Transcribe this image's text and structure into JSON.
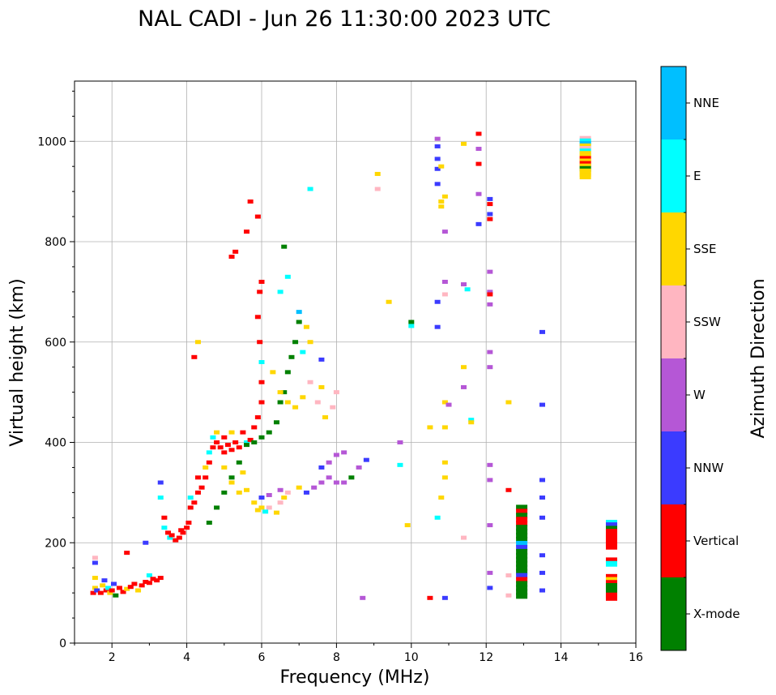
{
  "chart_data": {
    "type": "scatter",
    "title": "NAL CADI - Jun 26 11:30:00 2023 UTC",
    "xlabel": "Frequency (MHz)",
    "ylabel": "Virtual height (km)",
    "xlim": [
      1,
      16
    ],
    "ylim": [
      0,
      1120
    ],
    "x_ticks": [
      2,
      4,
      6,
      8,
      10,
      12,
      14,
      16
    ],
    "y_ticks": [
      0,
      200,
      400,
      600,
      800,
      1000
    ],
    "grid": true,
    "colorbar": {
      "label": "Azimuth Direction",
      "categories": [
        {
          "name": "X-mode",
          "color": "#008000"
        },
        {
          "name": "Vertical",
          "color": "#ff0000"
        },
        {
          "name": "NNW",
          "color": "#3b3bff"
        },
        {
          "name": "W",
          "color": "#b557d6"
        },
        {
          "name": "SSW",
          "color": "#ffb6c1"
        },
        {
          "name": "SSE",
          "color": "#ffd700"
        },
        {
          "name": "E",
          "color": "#00ffff"
        },
        {
          "name": "NNE",
          "color": "#00bfff"
        }
      ]
    },
    "points": [
      [
        1.5,
        100,
        "Vertical"
      ],
      [
        1.55,
        110,
        "SSE"
      ],
      [
        1.55,
        130,
        "SSE"
      ],
      [
        1.6,
        105,
        "NNW"
      ],
      [
        1.7,
        100,
        "Vertical"
      ],
      [
        1.75,
        115,
        "SSE"
      ],
      [
        1.8,
        125,
        "NNW"
      ],
      [
        1.85,
        105,
        "Vertical"
      ],
      [
        1.9,
        110,
        "E"
      ],
      [
        1.95,
        100,
        "SSE"
      ],
      [
        2.0,
        105,
        "Vertical"
      ],
      [
        2.05,
        118,
        "NNW"
      ],
      [
        2.1,
        95,
        "X-mode"
      ],
      [
        2.2,
        110,
        "Vertical"
      ],
      [
        2.3,
        102,
        "Vertical"
      ],
      [
        2.4,
        108,
        "SSE"
      ],
      [
        2.5,
        112,
        "Vertical"
      ],
      [
        2.6,
        118,
        "Vertical"
      ],
      [
        2.7,
        105,
        "SSE"
      ],
      [
        2.8,
        115,
        "Vertical"
      ],
      [
        2.9,
        122,
        "Vertical"
      ],
      [
        3.0,
        120,
        "Vertical"
      ],
      [
        3.0,
        135,
        "E"
      ],
      [
        3.1,
        128,
        "Vertical"
      ],
      [
        3.2,
        125,
        "Vertical"
      ],
      [
        3.3,
        130,
        "Vertical"
      ],
      [
        1.55,
        170,
        "SSW"
      ],
      [
        1.55,
        160,
        "NNW"
      ],
      [
        2.4,
        180,
        "Vertical"
      ],
      [
        2.9,
        200,
        "NNW"
      ],
      [
        3.3,
        290,
        "E"
      ],
      [
        3.3,
        320,
        "NNW"
      ],
      [
        3.4,
        250,
        "Vertical"
      ],
      [
        3.4,
        230,
        "E"
      ],
      [
        3.5,
        220,
        "Vertical"
      ],
      [
        3.55,
        210,
        "E"
      ],
      [
        3.6,
        215,
        "Vertical"
      ],
      [
        3.7,
        205,
        "Vertical"
      ],
      [
        3.8,
        210,
        "Vertical"
      ],
      [
        3.85,
        225,
        "Vertical"
      ],
      [
        3.9,
        220,
        "Vertical"
      ],
      [
        4.0,
        230,
        "Vertical"
      ],
      [
        4.05,
        240,
        "Vertical"
      ],
      [
        4.1,
        270,
        "Vertical"
      ],
      [
        4.1,
        290,
        "E"
      ],
      [
        4.2,
        280,
        "Vertical"
      ],
      [
        4.3,
        300,
        "Vertical"
      ],
      [
        4.3,
        330,
        "Vertical"
      ],
      [
        4.4,
        310,
        "Vertical"
      ],
      [
        4.5,
        330,
        "Vertical"
      ],
      [
        4.5,
        350,
        "SSE"
      ],
      [
        4.6,
        360,
        "Vertical"
      ],
      [
        4.6,
        380,
        "E"
      ],
      [
        4.7,
        390,
        "Vertical"
      ],
      [
        4.7,
        410,
        "E"
      ],
      [
        4.8,
        400,
        "Vertical"
      ],
      [
        4.8,
        420,
        "SSE"
      ],
      [
        4.9,
        390,
        "Vertical"
      ],
      [
        5.0,
        380,
        "Vertical"
      ],
      [
        5.0,
        410,
        "Vertical"
      ],
      [
        5.1,
        395,
        "Vertical"
      ],
      [
        5.2,
        385,
        "Vertical"
      ],
      [
        5.2,
        420,
        "SSE"
      ],
      [
        5.3,
        400,
        "Vertical"
      ],
      [
        5.4,
        390,
        "Vertical"
      ],
      [
        5.5,
        420,
        "Vertical"
      ],
      [
        5.6,
        400,
        "E"
      ],
      [
        5.7,
        405,
        "Vertical"
      ],
      [
        5.8,
        430,
        "Vertical"
      ],
      [
        5.9,
        450,
        "Vertical"
      ],
      [
        6.0,
        480,
        "Vertical"
      ],
      [
        6.0,
        520,
        "Vertical"
      ],
      [
        6.0,
        560,
        "E"
      ],
      [
        5.95,
        600,
        "Vertical"
      ],
      [
        5.9,
        650,
        "Vertical"
      ],
      [
        5.95,
        700,
        "Vertical"
      ],
      [
        6.0,
        720,
        "Vertical"
      ],
      [
        4.6,
        240,
        "X-mode"
      ],
      [
        4.8,
        270,
        "X-mode"
      ],
      [
        5.0,
        300,
        "X-mode"
      ],
      [
        5.2,
        330,
        "X-mode"
      ],
      [
        5.4,
        360,
        "X-mode"
      ],
      [
        5.6,
        395,
        "X-mode"
      ],
      [
        5.8,
        400,
        "X-mode"
      ],
      [
        6.0,
        410,
        "X-mode"
      ],
      [
        6.2,
        420,
        "X-mode"
      ],
      [
        6.4,
        440,
        "X-mode"
      ],
      [
        6.5,
        480,
        "X-mode"
      ],
      [
        6.6,
        500,
        "X-mode"
      ],
      [
        6.7,
        540,
        "X-mode"
      ],
      [
        6.8,
        570,
        "X-mode"
      ],
      [
        6.9,
        600,
        "X-mode"
      ],
      [
        7.0,
        640,
        "X-mode"
      ],
      [
        6.6,
        790,
        "X-mode"
      ],
      [
        7.2,
        630,
        "SSE"
      ],
      [
        7.1,
        580,
        "E"
      ],
      [
        7.0,
        660,
        "NNE"
      ],
      [
        6.7,
        730,
        "E"
      ],
      [
        6.5,
        700,
        "E"
      ],
      [
        7.3,
        600,
        "SSE"
      ],
      [
        5.0,
        350,
        "SSE"
      ],
      [
        5.2,
        320,
        "SSE"
      ],
      [
        5.4,
        300,
        "SSE"
      ],
      [
        5.5,
        340,
        "SSE"
      ],
      [
        5.6,
        305,
        "SSE"
      ],
      [
        5.8,
        280,
        "SSE"
      ],
      [
        6.0,
        270,
        "SSE"
      ],
      [
        6.2,
        270,
        "SSW"
      ],
      [
        6.4,
        260,
        "SSE"
      ],
      [
        6.5,
        280,
        "SSW"
      ],
      [
        6.6,
        290,
        "SSE"
      ],
      [
        6.7,
        300,
        "SSW"
      ],
      [
        7.0,
        310,
        "SSE"
      ],
      [
        7.2,
        300,
        "NNW"
      ],
      [
        7.4,
        310,
        "W"
      ],
      [
        7.6,
        320,
        "W"
      ],
      [
        7.8,
        330,
        "W"
      ],
      [
        8.0,
        320,
        "W"
      ],
      [
        8.2,
        320,
        "W"
      ],
      [
        8.4,
        330,
        "X-mode"
      ],
      [
        8.6,
        350,
        "W"
      ],
      [
        8.8,
        365,
        "NNW"
      ],
      [
        7.6,
        350,
        "NNW"
      ],
      [
        7.8,
        360,
        "W"
      ],
      [
        8.0,
        375,
        "W"
      ],
      [
        8.2,
        380,
        "W"
      ],
      [
        6.0,
        290,
        "NNW"
      ],
      [
        6.2,
        295,
        "W"
      ],
      [
        6.5,
        305,
        "W"
      ],
      [
        5.9,
        265,
        "SSE"
      ],
      [
        6.1,
        262,
        "E"
      ],
      [
        6.3,
        540,
        "SSE"
      ],
      [
        6.5,
        500,
        "SSE"
      ],
      [
        6.7,
        480,
        "SSE"
      ],
      [
        6.9,
        470,
        "SSE"
      ],
      [
        7.1,
        490,
        "SSE"
      ],
      [
        7.3,
        520,
        "SSW"
      ],
      [
        7.5,
        480,
        "SSW"
      ],
      [
        7.7,
        450,
        "SSE"
      ],
      [
        7.9,
        470,
        "SSW"
      ],
      [
        8.0,
        500,
        "SSW"
      ],
      [
        7.6,
        510,
        "SSE"
      ],
      [
        7.6,
        565,
        "NNW"
      ],
      [
        4.3,
        600,
        "SSE"
      ],
      [
        4.2,
        570,
        "Vertical"
      ],
      [
        5.2,
        770,
        "Vertical"
      ],
      [
        5.3,
        780,
        "Vertical"
      ],
      [
        5.6,
        820,
        "Vertical"
      ],
      [
        5.7,
        880,
        "Vertical"
      ],
      [
        5.9,
        850,
        "Vertical"
      ],
      [
        7.3,
        905,
        "E"
      ],
      [
        8.7,
        90,
        "W"
      ],
      [
        9.1,
        935,
        "SSE"
      ],
      [
        9.1,
        905,
        "SSW"
      ],
      [
        9.4,
        680,
        "SSE"
      ],
      [
        9.7,
        400,
        "W"
      ],
      [
        9.7,
        355,
        "E"
      ],
      [
        9.9,
        235,
        "SSE"
      ],
      [
        10.0,
        640,
        "X-mode"
      ],
      [
        10.0,
        632,
        "E"
      ],
      [
        10.5,
        90,
        "Vertical"
      ],
      [
        10.5,
        430,
        "SSE"
      ],
      [
        10.7,
        1005,
        "W"
      ],
      [
        10.7,
        990,
        "NNW"
      ],
      [
        10.7,
        965,
        "NNW"
      ],
      [
        10.7,
        945,
        "NNW"
      ],
      [
        10.7,
        915,
        "NNW"
      ],
      [
        10.7,
        680,
        "NNW"
      ],
      [
        10.7,
        630,
        "NNW"
      ],
      [
        10.7,
        250,
        "E"
      ],
      [
        10.8,
        950,
        "SSE"
      ],
      [
        10.8,
        880,
        "SSE"
      ],
      [
        10.8,
        870,
        "SSE"
      ],
      [
        10.9,
        890,
        "SSE"
      ],
      [
        10.9,
        820,
        "W"
      ],
      [
        10.9,
        720,
        "W"
      ],
      [
        10.9,
        695,
        "SSW"
      ],
      [
        10.9,
        480,
        "SSE"
      ],
      [
        10.9,
        430,
        "SSE"
      ],
      [
        10.9,
        360,
        "SSE"
      ],
      [
        10.9,
        330,
        "SSE"
      ],
      [
        10.8,
        290,
        "SSE"
      ],
      [
        10.9,
        90,
        "NNW"
      ],
      [
        11.0,
        475,
        "W"
      ],
      [
        11.4,
        995,
        "SSE"
      ],
      [
        11.4,
        715,
        "W"
      ],
      [
        11.4,
        550,
        "SSE"
      ],
      [
        11.4,
        510,
        "W"
      ],
      [
        11.4,
        210,
        "SSW"
      ],
      [
        11.5,
        705,
        "E"
      ],
      [
        11.6,
        445,
        "E"
      ],
      [
        11.6,
        440,
        "SSE"
      ],
      [
        11.8,
        1015,
        "Vertical"
      ],
      [
        11.8,
        985,
        "W"
      ],
      [
        11.8,
        955,
        "Vertical"
      ],
      [
        11.8,
        895,
        "W"
      ],
      [
        11.8,
        835,
        "NNW"
      ],
      [
        12.1,
        885,
        "NNW"
      ],
      [
        12.1,
        875,
        "Vertical"
      ],
      [
        12.1,
        855,
        "NNW"
      ],
      [
        12.1,
        845,
        "Vertical"
      ],
      [
        12.1,
        740,
        "W"
      ],
      [
        12.1,
        700,
        "W"
      ],
      [
        12.1,
        695,
        "Vertical"
      ],
      [
        12.1,
        675,
        "W"
      ],
      [
        12.1,
        580,
        "W"
      ],
      [
        12.1,
        550,
        "W"
      ],
      [
        12.1,
        355,
        "W"
      ],
      [
        12.1,
        325,
        "W"
      ],
      [
        12.1,
        235,
        "W"
      ],
      [
        12.1,
        140,
        "W"
      ],
      [
        12.1,
        110,
        "NNW"
      ],
      [
        12.6,
        480,
        "SSE"
      ],
      [
        12.6,
        305,
        "Vertical"
      ],
      [
        12.6,
        135,
        "SSW"
      ],
      [
        12.6,
        95,
        "SSW"
      ],
      [
        13.5,
        620,
        "NNW"
      ],
      [
        13.5,
        475,
        "NNW"
      ],
      [
        13.5,
        325,
        "NNW"
      ],
      [
        13.5,
        290,
        "NNW"
      ],
      [
        13.5,
        250,
        "NNW"
      ],
      [
        13.5,
        175,
        "NNW"
      ],
      [
        13.5,
        140,
        "NNW"
      ],
      [
        13.5,
        105,
        "NNW"
      ]
    ],
    "columns": [
      {
        "x": 12.95,
        "rows": [
          [
            270,
            "X-mode"
          ],
          [
            262,
            "Vertical"
          ],
          [
            254,
            "X-mode"
          ],
          [
            246,
            "Vertical"
          ],
          [
            238,
            "Vertical"
          ],
          [
            230,
            "X-mode"
          ],
          [
            222,
            "X-mode"
          ],
          [
            214,
            "X-mode"
          ],
          [
            206,
            "X-mode"
          ],
          [
            198,
            "NNE"
          ],
          [
            190,
            "NNW"
          ],
          [
            182,
            "X-mode"
          ],
          [
            174,
            "X-mode"
          ],
          [
            166,
            "X-mode"
          ],
          [
            158,
            "X-mode"
          ],
          [
            150,
            "X-mode"
          ],
          [
            142,
            "X-mode"
          ],
          [
            134,
            "NNW"
          ],
          [
            126,
            "Vertical"
          ],
          [
            118,
            "X-mode"
          ],
          [
            110,
            "X-mode"
          ],
          [
            102,
            "X-mode"
          ],
          [
            94,
            "X-mode"
          ]
        ]
      },
      {
        "x": 14.65,
        "rows": [
          [
            1005,
            "SSW"
          ],
          [
            1000,
            "E"
          ],
          [
            995,
            "NNE"
          ],
          [
            990,
            "SSE"
          ],
          [
            985,
            "SSW"
          ],
          [
            980,
            "E"
          ],
          [
            975,
            "SSE"
          ],
          [
            970,
            "SSE"
          ],
          [
            965,
            "Vertical"
          ],
          [
            960,
            "SSE"
          ],
          [
            955,
            "Vertical"
          ],
          [
            950,
            "SSE"
          ],
          [
            945,
            "X-mode"
          ],
          [
            940,
            "SSE"
          ],
          [
            935,
            "SSE"
          ],
          [
            930,
            "SSE"
          ]
        ]
      },
      {
        "x": 15.35,
        "rows": [
          [
            240,
            "E"
          ],
          [
            235,
            "NNW"
          ],
          [
            228,
            "X-mode"
          ],
          [
            222,
            "Vertical"
          ],
          [
            216,
            "Vertical"
          ],
          [
            210,
            "Vertical"
          ],
          [
            204,
            "Vertical"
          ],
          [
            198,
            "Vertical"
          ],
          [
            192,
            "Vertical"
          ],
          [
            165,
            "Vertical"
          ],
          [
            158,
            "E"
          ],
          [
            132,
            "Vertical"
          ],
          [
            126,
            "SSE"
          ],
          [
            120,
            "Vertical"
          ],
          [
            114,
            "X-mode"
          ],
          [
            108,
            "X-mode"
          ],
          [
            102,
            "X-mode"
          ],
          [
            95,
            "Vertical"
          ],
          [
            90,
            "Vertical"
          ]
        ]
      }
    ]
  }
}
